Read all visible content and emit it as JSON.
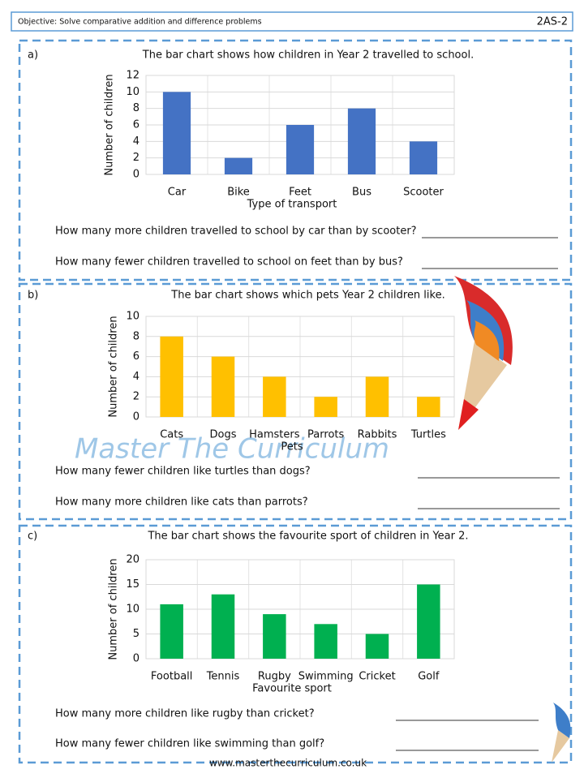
{
  "header": {
    "objective": "Objective: Solve comparative addition and difference problems",
    "code": "2AS-2"
  },
  "chart_data": [
    {
      "type": "bar",
      "title": "The bar chart shows how children in Year 2 travelled to school.",
      "categories": [
        "Car",
        "Bike",
        "Feet",
        "Bus",
        "Scooter"
      ],
      "values": [
        10,
        2,
        6,
        8,
        4
      ],
      "color": "#4472c4",
      "ylim": [
        0,
        12
      ],
      "yticks": [
        0,
        2,
        4,
        6,
        8,
        10,
        12
      ],
      "x_label": "Type of transport",
      "y_label": "Number of children",
      "grid": true
    },
    {
      "type": "bar",
      "title": "The bar chart shows which pets Year 2 children like.",
      "categories": [
        "Cats",
        "Dogs",
        "Hamsters",
        "Parrots",
        "Rabbits",
        "Turtles"
      ],
      "values": [
        8,
        6,
        4,
        2,
        4,
        2
      ],
      "color": "#ffc000",
      "ylim": [
        0,
        10
      ],
      "yticks": [
        0,
        2,
        4,
        6,
        8,
        10
      ],
      "x_label": "Pets",
      "y_label": "Number of children",
      "grid": true
    },
    {
      "type": "bar",
      "title": "The bar chart shows the favourite sport of children in Year 2.",
      "categories": [
        "Football",
        "Tennis",
        "Rugby",
        "Swimming",
        "Cricket",
        "Golf"
      ],
      "values": [
        11,
        13,
        9,
        7,
        5,
        15
      ],
      "color": "#00b050",
      "ylim": [
        0,
        20
      ],
      "yticks": [
        0,
        5,
        10,
        15,
        20
      ],
      "x_label": "Favourite sport",
      "y_label": "Number of children",
      "grid": true
    }
  ],
  "sections": [
    {
      "label": "a)",
      "questions": [
        "How many more children travelled to school by car than by scooter?",
        "How many fewer children travelled to school on feet than by bus?"
      ]
    },
    {
      "label": "b)",
      "questions": [
        "How many fewer children like turtles than dogs?",
        "How many more children like cats than parrots?"
      ]
    },
    {
      "label": "c)",
      "questions": [
        "How many more children like rugby than cricket?",
        "How many fewer children like swimming than golf?"
      ]
    }
  ],
  "watermark": "Master The Curriculum",
  "footer": "www.masterthecurriculum.co.uk"
}
